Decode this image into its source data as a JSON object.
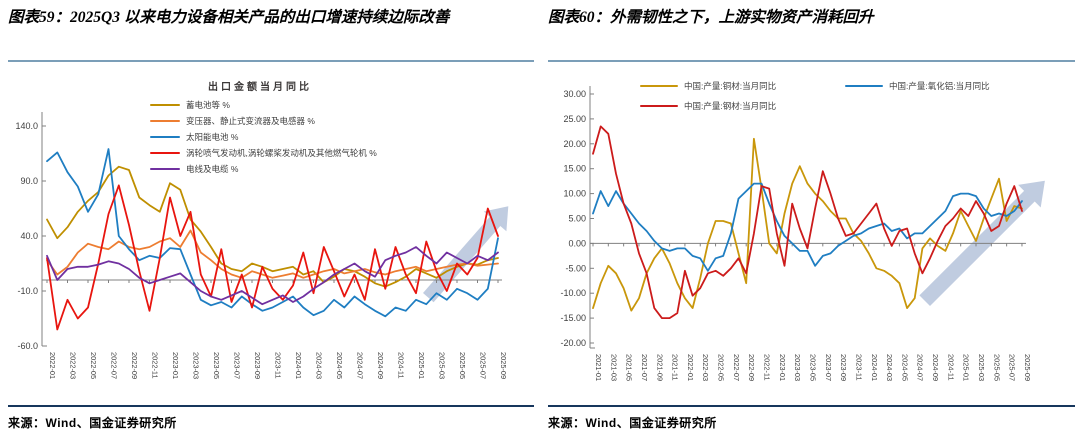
{
  "figure59": {
    "title": "图表59：2025Q3 以来电力设备相关产品的出口增速持续边际改善",
    "source": "来源：Wind、国金证券研究所"
  },
  "figure60": {
    "title": "图表60：外需韧性之下，上游实物资产消耗回升",
    "source": "来源：Wind、国金证券研究所"
  },
  "colors": {
    "battery_gold": "#BF8F00",
    "transformer_orange": "#ED7D31",
    "solar_blue": "#1F7EC2",
    "turbine_red": "#E8150F",
    "cable_purple": "#7030A0",
    "copper_gold": "#C9970B",
    "alumina_blue": "#1F7EC2",
    "steel_red": "#CC1B1B",
    "arrow_fill": "#B9C7DD",
    "axis_gray": "#808080",
    "rule_top": "#7B9EB8",
    "rule_bottom": "#16365C"
  },
  "chart_data": [
    {
      "type": "line",
      "legend_title": "出口金额当月同比",
      "legend_position": "inside-top",
      "grid": false,
      "ylim": [
        -60,
        150
      ],
      "yticks": [
        {
          "v": 140,
          "label": "140.0"
        },
        {
          "v": 90,
          "label": "90.0"
        },
        {
          "v": 40,
          "label": "40.0"
        },
        {
          "v": -10,
          "label": "-10.0"
        },
        {
          "v": -60,
          "label": "-60.0"
        }
      ],
      "x_label_every": 2,
      "x": [
        "2022-01",
        "2022-02",
        "2022-03",
        "2022-04",
        "2022-05",
        "2022-06",
        "2022-07",
        "2022-08",
        "2022-09",
        "2022-10",
        "2022-11",
        "2022-12",
        "2023-01",
        "2023-02",
        "2023-03",
        "2023-04",
        "2023-05",
        "2023-06",
        "2023-07",
        "2023-08",
        "2023-09",
        "2023-10",
        "2023-11",
        "2023-12",
        "2024-01",
        "2024-02",
        "2024-03",
        "2024-04",
        "2024-05",
        "2024-06",
        "2024-07",
        "2024-08",
        "2024-09",
        "2024-10",
        "2024-11",
        "2024-12",
        "2025-01",
        "2025-02",
        "2025-03",
        "2025-04",
        "2025-05",
        "2025-06",
        "2025-07",
        "2025-08",
        "2025-09"
      ],
      "series": [
        {
          "name": "蓄电池等 %",
          "color_key": "battery_gold",
          "values": [
            55,
            38,
            48,
            62,
            72,
            80,
            95,
            103,
            100,
            75,
            68,
            62,
            88,
            82,
            55,
            44,
            30,
            15,
            10,
            8,
            15,
            12,
            8,
            10,
            12,
            5,
            8,
            -2,
            3,
            10,
            8,
            3,
            -3,
            -6,
            -2,
            3,
            10,
            6,
            2,
            8,
            12,
            15,
            14,
            18,
            20
          ]
        },
        {
          "name": "变压器、静止式变流器及电感器 %",
          "color_key": "transformer_orange",
          "values": [
            18,
            5,
            12,
            25,
            33,
            30,
            28,
            35,
            30,
            28,
            30,
            35,
            38,
            30,
            45,
            25,
            18,
            10,
            5,
            2,
            8,
            5,
            2,
            4,
            6,
            2,
            5,
            8,
            10,
            6,
            8,
            10,
            7,
            5,
            8,
            10,
            12,
            8,
            10,
            12,
            14,
            15,
            13,
            14,
            15
          ]
        },
        {
          "name": "太阳能电池 %",
          "color_key": "solar_blue",
          "values": [
            108,
            116,
            98,
            85,
            62,
            78,
            119,
            40,
            28,
            18,
            22,
            20,
            29,
            28,
            5,
            -18,
            -23,
            -20,
            -25,
            -15,
            -22,
            -28,
            -25,
            -20,
            -15,
            -25,
            -32,
            -28,
            -18,
            -25,
            -15,
            -22,
            -28,
            -33,
            -25,
            -28,
            -18,
            -22,
            -12,
            -18,
            -8,
            -12,
            -18,
            -8,
            38
          ]
        },
        {
          "name": "涡轮喷气发动机,涡轮螺桨发动机及其他燃气轮机 %",
          "color_key": "turbine_red",
          "values": [
            20,
            -45,
            -18,
            -35,
            -25,
            15,
            60,
            86,
            50,
            8,
            -28,
            20,
            75,
            40,
            62,
            5,
            -15,
            28,
            -20,
            5,
            -25,
            12,
            -8,
            -18,
            -5,
            25,
            -12,
            30,
            8,
            -15,
            5,
            -18,
            28,
            -8,
            30,
            5,
            -12,
            35,
            8,
            -10,
            15,
            5,
            20,
            65,
            40
          ]
        },
        {
          "name": "电线及电缆 %",
          "color_key": "cable_purple",
          "values": [
            22,
            0,
            10,
            12,
            12,
            14,
            17,
            15,
            10,
            2,
            -3,
            0,
            3,
            6,
            -2,
            -10,
            -15,
            -18,
            -14,
            -10,
            -16,
            -22,
            -18,
            -14,
            -20,
            -15,
            -8,
            -2,
            5,
            10,
            15,
            8,
            3,
            18,
            22,
            25,
            30,
            22,
            15,
            25,
            20,
            15,
            22,
            18,
            25
          ]
        }
      ],
      "arrow": {
        "from_index": 37.2,
        "from_value": -16,
        "to_index": 45,
        "to_value": 67
      }
    },
    {
      "type": "line",
      "legend_title": "",
      "legend_position": "top",
      "grid": false,
      "ylim": [
        -21,
        31
      ],
      "yticks": [
        {
          "v": 30,
          "label": "30.00"
        },
        {
          "v": 25,
          "label": "25.00"
        },
        {
          "v": 20,
          "label": "20.00"
        },
        {
          "v": 15,
          "label": "15.00"
        },
        {
          "v": 10,
          "label": "10.00"
        },
        {
          "v": 5,
          "label": "5.00"
        },
        {
          "v": 0,
          "label": "0.00"
        },
        {
          "v": -5,
          "label": "-5.00"
        },
        {
          "v": -10,
          "label": "-10.00"
        },
        {
          "v": -15,
          "label": "-15.00"
        },
        {
          "v": -20,
          "label": "-20.00"
        }
      ],
      "x_label_every": 2,
      "x": [
        "2021-01",
        "2021-02",
        "2021-03",
        "2021-04",
        "2021-05",
        "2021-06",
        "2021-07",
        "2021-08",
        "2021-09",
        "2021-10",
        "2021-11",
        "2021-12",
        "2022-01",
        "2022-02",
        "2022-03",
        "2022-04",
        "2022-05",
        "2022-06",
        "2022-07",
        "2022-08",
        "2022-09",
        "2022-10",
        "2022-11",
        "2022-12",
        "2023-01",
        "2023-02",
        "2023-03",
        "2023-04",
        "2023-05",
        "2023-06",
        "2023-07",
        "2023-08",
        "2023-09",
        "2023-10",
        "2023-11",
        "2023-12",
        "2024-01",
        "2024-02",
        "2024-03",
        "2024-04",
        "2024-05",
        "2024-06",
        "2024-07",
        "2024-08",
        "2024-09",
        "2024-10",
        "2024-11",
        "2024-12",
        "2025-01",
        "2025-02",
        "2025-03",
        "2025-04",
        "2025-05",
        "2025-06",
        "2025-07",
        "2025-08",
        "2025-09"
      ],
      "series": [
        {
          "name": "中国:产量:铜材:当月同比",
          "color_key": "copper_gold",
          "values": [
            -13,
            -8,
            -4.5,
            -6,
            -9,
            -13.5,
            -11,
            -6,
            -3,
            -1,
            -4,
            -8,
            -11,
            -13,
            -7,
            0,
            4.5,
            4.5,
            4,
            -2,
            -8,
            21,
            11,
            0,
            -2,
            6,
            12,
            15.5,
            12,
            10,
            8.5,
            6.5,
            5,
            5,
            2,
            0.5,
            -2,
            -5,
            -5.5,
            -6.5,
            -8,
            -13,
            -11,
            -1,
            1,
            -0.5,
            -1.5,
            2,
            6.5,
            3.5,
            0.5,
            5,
            9,
            13,
            4.5,
            7.5,
            7
          ]
        },
        {
          "name": "中国:产量:氧化铝:当月同比",
          "color_key": "alumina_blue",
          "values": [
            6,
            10.5,
            7.5,
            10.5,
            8,
            6,
            4,
            2.5,
            0.5,
            -1,
            -1.5,
            -1,
            -1,
            -2.5,
            -3,
            -5.5,
            -3,
            -2.5,
            2,
            9,
            10.5,
            12,
            12,
            8,
            4.5,
            1.5,
            0,
            -1.5,
            -1.5,
            -4.5,
            -2.5,
            -2,
            -0.5,
            0.5,
            1.5,
            2,
            3,
            3.5,
            4,
            2.5,
            3,
            1,
            2,
            2,
            3.5,
            5,
            6.5,
            9.5,
            10,
            10,
            9.5,
            7,
            5.5,
            6,
            5.5,
            6.5,
            8.5
          ]
        },
        {
          "name": "中国:产量:钢材:当月同比",
          "color_key": "steel_red",
          "values": [
            18,
            23.5,
            22,
            14,
            8,
            4,
            -2,
            -6,
            -13,
            -15,
            -15,
            -14,
            -5.5,
            -10.5,
            -9,
            -6,
            -5.5,
            -6.5,
            -5,
            -3,
            -6,
            2,
            11.5,
            11,
            2,
            -4.5,
            8,
            3,
            -1,
            7,
            14.5,
            10,
            5,
            1.5,
            2,
            4,
            6,
            8,
            3,
            -0.5,
            2.5,
            3,
            -2,
            -6,
            -3,
            0.5,
            3.5,
            5,
            7,
            5.5,
            8.5,
            6,
            2.5,
            3.5,
            8,
            11.5,
            6.5
          ]
        }
      ],
      "arrow": {
        "from_index": 43.3,
        "from_value": -11.5,
        "to_index": 59,
        "to_value": 12.6
      }
    }
  ]
}
